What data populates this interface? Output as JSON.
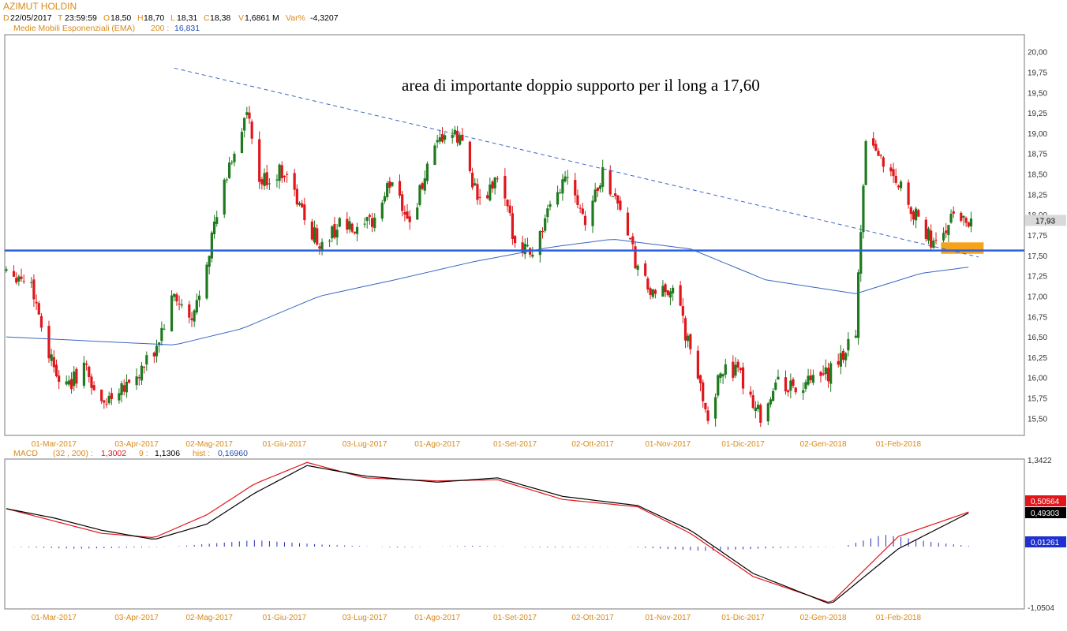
{
  "header": {
    "instrument": "AZIMUT HOLDIN",
    "d_label": "D",
    "d_value": "22/05/2017",
    "t_label": "T",
    "t_value": "23:59:59",
    "o_label": "O",
    "o_value": "18,50",
    "h_label": "H",
    "h_value": "18,70",
    "l_label": "L",
    "l_value": "18,31",
    "c_label": "C",
    "c_value": "18,38",
    "v_label": "V",
    "v_value": "1,6861 M",
    "var_label": "Var%",
    "var_value": "-4,3207",
    "ema_label": "Medie Mobili Esponenziali (EMA)",
    "ema_period": "200 :",
    "ema_value": "16,831"
  },
  "colors": {
    "up": "#1e7a1e",
    "down": "#e0161b",
    "ema": "#3a66c4",
    "support": "#2a5fe0",
    "trendline": "#3a66c4",
    "zone": "#f7a21b",
    "macd_line": "#000000",
    "signal_line": "#e0161b",
    "histogram": "#2a2fb8",
    "header_orange": "#d98a1a",
    "header_value": "#1f4fb0"
  },
  "chart_data": [
    {
      "type": "candlestick",
      "title": "",
      "annotation": "area di importante doppio supporto per il long a 17,60",
      "x_ticks": [
        "01-Mar-2017",
        "03-Apr-2017",
        "02-Mag-2017",
        "01-Giu-2017",
        "03-Lug-2017",
        "01-Ago-2017",
        "01-Set-2017",
        "02-Ott-2017",
        "01-Nov-2017",
        "01-Dic-2017",
        "02-Gen-2018",
        "01-Feb-2018"
      ],
      "y_ticks": [
        "15,50",
        "15,75",
        "16,00",
        "16,25",
        "16,50",
        "16,75",
        "17,00",
        "17,25",
        "17,50",
        "17,75",
        "18,00",
        "18,25",
        "18,50",
        "18,75",
        "19,00",
        "19,25",
        "19,50",
        "19,75",
        "20,00"
      ],
      "ylim": [
        15.3,
        20.2
      ],
      "last_price_label": "17,93",
      "last_price": 17.93,
      "support_level": 17.56,
      "support_zone": [
        17.52,
        17.66
      ],
      "trendline": {
        "start": [
          "2017-04-18",
          19.8
        ],
        "end": [
          "2018-03-05",
          17.48
        ]
      },
      "price_path": [
        [
          "2017-02-10",
          17.35
        ],
        [
          "2017-02-20",
          17.15
        ],
        [
          "2017-02-27",
          16.3
        ],
        [
          "2017-03-06",
          15.85
        ],
        [
          "2017-03-13",
          16.15
        ],
        [
          "2017-03-20",
          15.65
        ],
        [
          "2017-03-27",
          15.9
        ],
        [
          "2017-04-03",
          16.0
        ],
        [
          "2017-04-10",
          16.3
        ],
        [
          "2017-04-18",
          17.0
        ],
        [
          "2017-04-25",
          16.65
        ],
        [
          "2017-05-02",
          17.6
        ],
        [
          "2017-05-10",
          18.6
        ],
        [
          "2017-05-17",
          19.25
        ],
        [
          "2017-05-22",
          18.38
        ],
        [
          "2017-06-01",
          18.55
        ],
        [
          "2017-06-09",
          17.95
        ],
        [
          "2017-06-16",
          17.6
        ],
        [
          "2017-06-23",
          17.9
        ],
        [
          "2017-06-30",
          17.75
        ],
        [
          "2017-07-07",
          17.95
        ],
        [
          "2017-07-14",
          18.45
        ],
        [
          "2017-07-21",
          17.9
        ],
        [
          "2017-07-28",
          18.55
        ],
        [
          "2017-08-04",
          19.0
        ],
        [
          "2017-08-11",
          18.9
        ],
        [
          "2017-08-18",
          18.1
        ],
        [
          "2017-08-25",
          18.45
        ],
        [
          "2017-09-01",
          17.7
        ],
        [
          "2017-09-08",
          17.55
        ],
        [
          "2017-09-15",
          18.05
        ],
        [
          "2017-09-22",
          18.55
        ],
        [
          "2017-09-29",
          17.95
        ],
        [
          "2017-10-06",
          18.5
        ],
        [
          "2017-10-13",
          18.1
        ],
        [
          "2017-10-20",
          17.3
        ],
        [
          "2017-10-27",
          16.95
        ],
        [
          "2017-11-03",
          17.15
        ],
        [
          "2017-11-10",
          16.3
        ],
        [
          "2017-11-17",
          15.55
        ],
        [
          "2017-11-24",
          16.2
        ],
        [
          "2017-12-01",
          15.95
        ],
        [
          "2017-12-08",
          15.55
        ],
        [
          "2017-12-15",
          15.95
        ],
        [
          "2017-12-22",
          15.85
        ],
        [
          "2018-01-02",
          16.0
        ],
        [
          "2018-01-08",
          16.15
        ],
        [
          "2018-01-15",
          16.6
        ],
        [
          "2018-01-19",
          19.0
        ],
        [
          "2018-01-26",
          18.65
        ],
        [
          "2018-02-02",
          18.35
        ],
        [
          "2018-02-09",
          17.9
        ],
        [
          "2018-02-16",
          17.6
        ],
        [
          "2018-02-23",
          18.0
        ],
        [
          "2018-03-02",
          17.93
        ]
      ],
      "ema_200": [
        [
          "2017-02-10",
          16.5
        ],
        [
          "2017-03-15",
          16.45
        ],
        [
          "2017-04-18",
          16.4
        ],
        [
          "2017-05-15",
          16.6
        ],
        [
          "2017-06-15",
          17.0
        ],
        [
          "2017-07-15",
          17.2
        ],
        [
          "2017-08-15",
          17.42
        ],
        [
          "2017-09-15",
          17.6
        ],
        [
          "2017-10-10",
          17.7
        ],
        [
          "2017-11-10",
          17.58
        ],
        [
          "2017-12-10",
          17.2
        ],
        [
          "2018-01-15",
          17.03
        ],
        [
          "2018-02-10",
          17.28
        ],
        [
          "2018-03-02",
          17.36
        ]
      ]
    },
    {
      "type": "line",
      "title": "MACD",
      "header": {
        "label": "MACD",
        "params": "(32 , 200) :",
        "macd_value": "1,3002",
        "signal_label": "9 :",
        "signal_value": "1,1306",
        "hist_label": "hist :",
        "hist_value": "0,16960"
      },
      "y_ticks": [
        "1,3422",
        "-1,0504"
      ],
      "ylim": [
        -1.0504,
        1.3422
      ],
      "x_ticks": [
        "01-Mar-2017",
        "03-Apr-2017",
        "02-Mag-2017",
        "01-Giu-2017",
        "03-Lug-2017",
        "01-Ago-2017",
        "01-Set-2017",
        "02-Ott-2017",
        "01-Nov-2017",
        "01-Dic-2017",
        "02-Gen-2018",
        "01-Feb-2018"
      ],
      "value_labels": {
        "macd": "0,49303",
        "signal": "0,50564",
        "histogram": "0,01261"
      },
      "series": [
        {
          "key": "macd",
          "values": [
            [
              "2017-02-10",
              0.55
            ],
            [
              "2017-03-01",
              0.4
            ],
            [
              "2017-03-20",
              0.2
            ],
            [
              "2017-04-10",
              0.05
            ],
            [
              "2017-05-01",
              0.3
            ],
            [
              "2017-05-20",
              0.8
            ],
            [
              "2017-06-10",
              1.25
            ],
            [
              "2017-07-03",
              1.08
            ],
            [
              "2017-08-01",
              0.98
            ],
            [
              "2017-08-25",
              1.05
            ],
            [
              "2017-09-20",
              0.75
            ],
            [
              "2017-10-20",
              0.6
            ],
            [
              "2017-11-10",
              0.2
            ],
            [
              "2017-12-05",
              -0.5
            ],
            [
              "2018-01-05",
              -1.0
            ],
            [
              "2018-02-01",
              -0.1
            ],
            [
              "2018-03-02",
              0.5
            ]
          ]
        },
        {
          "key": "signal",
          "values": [
            [
              "2017-02-10",
              0.55
            ],
            [
              "2017-03-01",
              0.35
            ],
            [
              "2017-03-20",
              0.15
            ],
            [
              "2017-04-10",
              0.08
            ],
            [
              "2017-05-01",
              0.45
            ],
            [
              "2017-05-20",
              0.95
            ],
            [
              "2017-06-10",
              1.3
            ],
            [
              "2017-07-03",
              1.05
            ],
            [
              "2017-08-01",
              1.0
            ],
            [
              "2017-08-25",
              1.02
            ],
            [
              "2017-09-20",
              0.7
            ],
            [
              "2017-10-20",
              0.58
            ],
            [
              "2017-11-10",
              0.15
            ],
            [
              "2017-12-05",
              -0.55
            ],
            [
              "2018-01-05",
              -0.98
            ],
            [
              "2018-02-01",
              0.1
            ],
            [
              "2018-03-02",
              0.51
            ]
          ]
        },
        {
          "key": "histogram",
          "values": [
            [
              "2017-02-10",
              0.0
            ],
            [
              "2017-03-10",
              -0.05
            ],
            [
              "2017-04-18",
              0.0
            ],
            [
              "2017-05-20",
              0.15
            ],
            [
              "2017-06-15",
              0.05
            ],
            [
              "2017-07-15",
              -0.02
            ],
            [
              "2017-08-15",
              0.02
            ],
            [
              "2017-09-15",
              -0.02
            ],
            [
              "2017-10-15",
              0.0
            ],
            [
              "2017-11-15",
              -0.1
            ],
            [
              "2017-12-15",
              -0.03
            ],
            [
              "2018-01-10",
              0.0
            ],
            [
              "2018-01-26",
              0.28
            ],
            [
              "2018-02-15",
              0.1
            ],
            [
              "2018-03-02",
              0.01
            ]
          ]
        }
      ]
    }
  ]
}
